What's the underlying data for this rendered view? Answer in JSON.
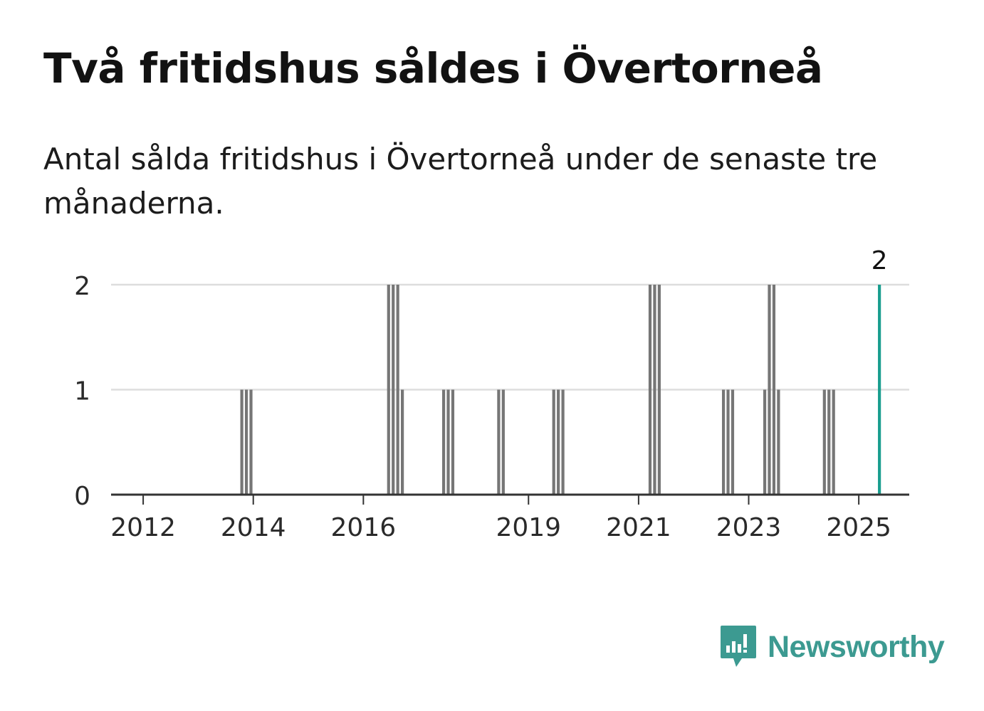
{
  "header": {
    "title": "Två fritidshus såldes i Övertorneå",
    "subtitle": "Antal sålda fritidshus i Övertorneå under de senaste tre månaderna."
  },
  "brand": {
    "name": "Newsworthy",
    "color": "#3c9a91",
    "icon": "newsworthy-logo-icon"
  },
  "colors": {
    "bar": "#767676",
    "highlight": "#1a9e8f",
    "grid": "#dddddd",
    "axis": "#333333",
    "text": "#2a2a2a"
  },
  "chart_data": {
    "type": "bar",
    "title": "Två fritidshus såldes i Övertorneå",
    "subtitle": "Antal sålda fritidshus i Övertorneå under de senaste tre månaderna.",
    "xlabel": "",
    "ylabel": "",
    "xlim": [
      "2011-06",
      "2025-12"
    ],
    "ylim": [
      0,
      2
    ],
    "yticks": [
      0,
      1,
      2
    ],
    "xticks": [
      "2012",
      "2014",
      "2016",
      "2019",
      "2021",
      "2023",
      "2025"
    ],
    "grid": true,
    "legend": "none",
    "series": [
      {
        "values": [
          {
            "x": "2013-10",
            "y": 1
          },
          {
            "x": "2013-11",
            "y": 1
          },
          {
            "x": "2013-12",
            "y": 1
          },
          {
            "x": "2016-06",
            "y": 2
          },
          {
            "x": "2016-07",
            "y": 2
          },
          {
            "x": "2016-08",
            "y": 2
          },
          {
            "x": "2016-09",
            "y": 1
          },
          {
            "x": "2017-06",
            "y": 1
          },
          {
            "x": "2017-07",
            "y": 1
          },
          {
            "x": "2017-08",
            "y": 1
          },
          {
            "x": "2018-06",
            "y": 1
          },
          {
            "x": "2018-07",
            "y": 1
          },
          {
            "x": "2019-06",
            "y": 1
          },
          {
            "x": "2019-07",
            "y": 1
          },
          {
            "x": "2019-08",
            "y": 1
          },
          {
            "x": "2021-03",
            "y": 2
          },
          {
            "x": "2021-04",
            "y": 2
          },
          {
            "x": "2021-05",
            "y": 2
          },
          {
            "x": "2022-07",
            "y": 1
          },
          {
            "x": "2022-08",
            "y": 1
          },
          {
            "x": "2022-09",
            "y": 1
          },
          {
            "x": "2023-04",
            "y": 1
          },
          {
            "x": "2023-05",
            "y": 2
          },
          {
            "x": "2023-06",
            "y": 2
          },
          {
            "x": "2023-07",
            "y": 1
          },
          {
            "x": "2024-05",
            "y": 1
          },
          {
            "x": "2024-06",
            "y": 1
          },
          {
            "x": "2024-07",
            "y": 1
          },
          {
            "x": "2025-05",
            "y": 2,
            "highlight": true,
            "label": "2"
          }
        ]
      }
    ]
  }
}
